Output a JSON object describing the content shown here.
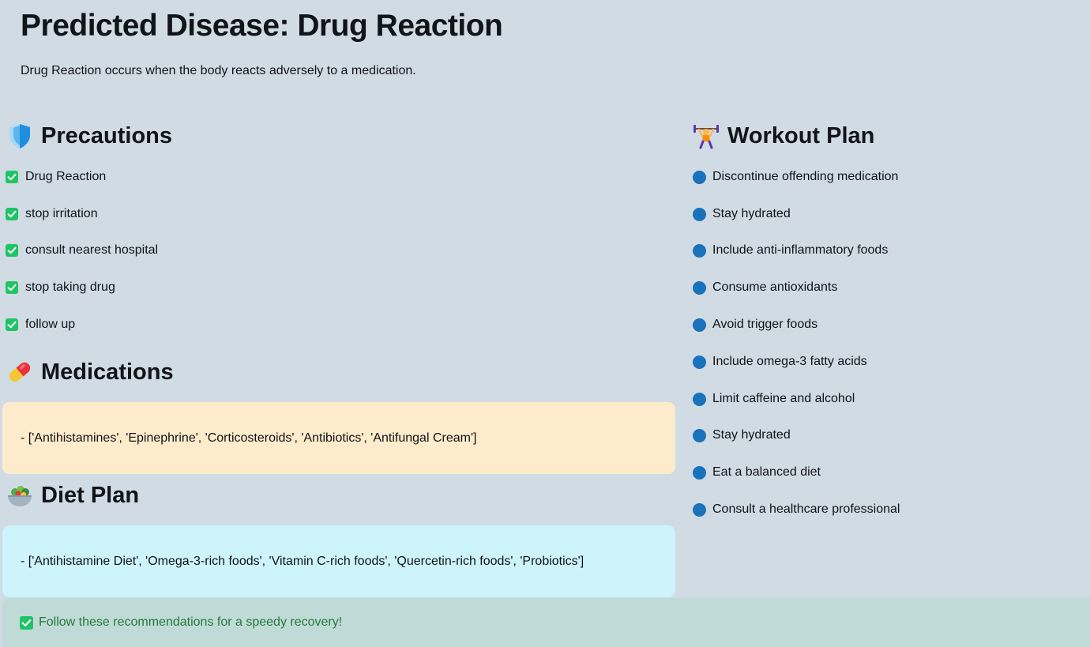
{
  "header": {
    "title": "Predicted Disease: Drug Reaction",
    "description": "Drug Reaction occurs when the body reacts adversely to a medication."
  },
  "precautions": {
    "heading": "Precautions",
    "icon": "shield-icon",
    "items": [
      "Drug Reaction",
      "stop irritation",
      "consult nearest hospital",
      "stop taking drug",
      "follow up"
    ]
  },
  "medications": {
    "heading": "Medications",
    "icon": "pill-icon",
    "text": "- ['Antihistamines', 'Epinephrine', 'Corticosteroids', 'Antibiotics', 'Antifungal Cream']",
    "box_color": "#feebcb"
  },
  "diet": {
    "heading": "Diet Plan",
    "icon": "salad-icon",
    "text": "- ['Antihistamine Diet', 'Omega-3-rich foods', 'Vitamin C-rich foods', 'Quercetin-rich foods', 'Probiotics']",
    "box_color": "#cdf4fb"
  },
  "workout": {
    "heading": "Workout Plan",
    "icon": "weightlifter-icon",
    "items": [
      "Discontinue offending medication",
      "Stay hydrated",
      "Include anti-inflammatory foods",
      "Consume antioxidants",
      "Avoid trigger foods",
      "Include omega-3 fatty acids",
      "Limit caffeine and alcohol",
      "Stay hydrated",
      "Eat a balanced diet",
      "Consult a healthcare professional"
    ]
  },
  "footer": {
    "message": "Follow these recommendations for a speedy recovery!"
  },
  "colors": {
    "background": "#d0dbe4",
    "check_green": "#20c464",
    "bullet_blue": "#1a72bb",
    "success_text": "#247a3a"
  }
}
